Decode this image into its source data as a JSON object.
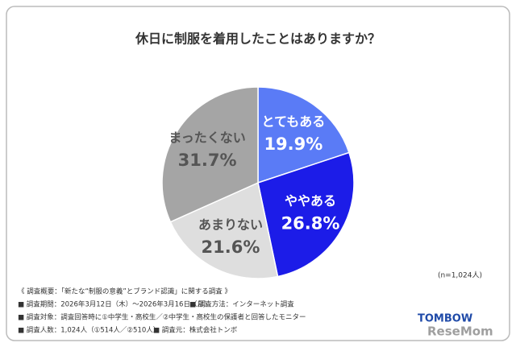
{
  "chart_data": {
    "type": "pie",
    "title": "休日に制服を着用したことはありますか？",
    "categories": [
      "とてもある",
      "ややある",
      "あまりない",
      "まったくない"
    ],
    "values": [
      19.9,
      26.8,
      21.6,
      31.7
    ],
    "value_labels": [
      "19.9%",
      "26.8%",
      "21.6%",
      "31.7%"
    ],
    "colors": [
      "#5a7bf6",
      "#1c1ce8",
      "#dedede",
      "#a5a5a5"
    ],
    "label_colors": [
      "#ffffff",
      "#ffffff",
      "#555555",
      "#555555"
    ],
    "sample_note": "(n=1,024人)",
    "notes": [
      "《 調査概要：「新たな“制服の意義”とブランド認識」に関する調査 》",
      "■ 調査期間：2026年3月12日（木）～2026年3月16日（月）",
      "■ 調査方法：インターネット調査",
      "■ 調査対象：調査回答時に①中学生・高校生／②中学生・高校生の保護者と回答したモニター",
      "■ 調査人数：1,024人（①514人／②510人）",
      "■ 調査元：株式会社トンボ"
    ],
    "logo": "TOMBOW",
    "watermark": "ReseMom"
  }
}
